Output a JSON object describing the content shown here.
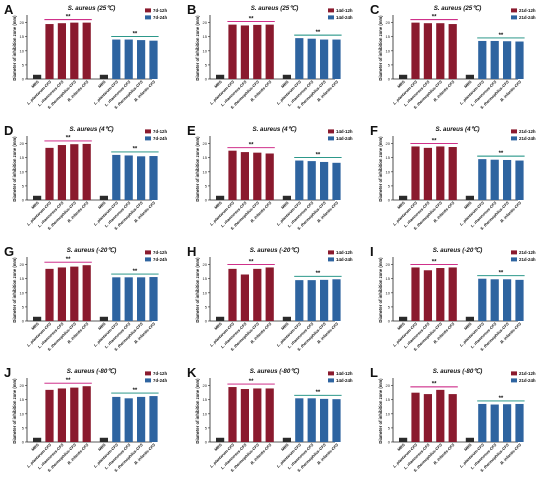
{
  "figure": {
    "colors": {
      "mrs": "#2b2b2b",
      "twelve": "#8a1a2e",
      "twentyfour": "#2e64a0",
      "sig_line_12": "#c8127a",
      "sig_line_24": "#0f8a7a",
      "axis": "#222222"
    }
  },
  "chart_data": [
    {
      "type": "bar",
      "panel_letter": "A",
      "title": "S. aureus (25℃)",
      "ylabel": "Diameter of inhibition zone (mm)",
      "categories": [
        "MRS",
        "L. plantarum-CFS",
        "L. rhamnosus-CFS",
        "S. thermophilus-CFS",
        "B. infantis-CFS"
      ],
      "ylim": [
        0,
        22
      ],
      "legend": [
        "7d-12h",
        "7d-24h"
      ],
      "sig": [
        "**",
        "**"
      ],
      "series": [
        {
          "name": "7d-12h",
          "values": [
            1.5,
            19.5,
            19.8,
            20.0,
            20.0
          ]
        },
        {
          "name": "7d-24h",
          "values": [
            1.5,
            14.0,
            14.0,
            13.8,
            13.6
          ]
        }
      ]
    },
    {
      "type": "bar",
      "panel_letter": "B",
      "title": "S. aureus (25℃)",
      "ylabel": "Diameter of inhibition zone (mm)",
      "categories": [
        "MRS",
        "L. plantarum-CFS",
        "L. rhamnosus-CFS",
        "S. thermophilus-CFS",
        "B. infantis-CFS"
      ],
      "ylim": [
        0,
        22
      ],
      "legend": [
        "14d-12h",
        "14d-24h"
      ],
      "sig": [
        "**",
        "**"
      ],
      "series": [
        {
          "name": "14d-12h",
          "values": [
            1.5,
            19.3,
            19.0,
            19.2,
            19.3
          ]
        },
        {
          "name": "14d-24h",
          "values": [
            1.5,
            14.5,
            14.3,
            14.0,
            14.0
          ]
        }
      ]
    },
    {
      "type": "bar",
      "panel_letter": "C",
      "title": "S. aureus (25℃)",
      "ylabel": "Diameter of inhibition zone (mm)",
      "categories": [
        "MRS",
        "L. plantarum-CFS",
        "L. rhamnosus-CFS",
        "S. thermophilus-CFS",
        "B. infantis-CFS"
      ],
      "ylim": [
        0,
        22
      ],
      "legend": [
        "21d-12h",
        "21d-24h"
      ],
      "sig": [
        "**",
        "**"
      ],
      "series": [
        {
          "name": "21d-12h",
          "values": [
            1.5,
            20.0,
            19.8,
            19.8,
            19.5
          ]
        },
        {
          "name": "21d-24h",
          "values": [
            1.5,
            13.5,
            13.5,
            13.4,
            13.3
          ]
        }
      ]
    },
    {
      "type": "bar",
      "panel_letter": "D",
      "title": "S. aureus (4℃)",
      "ylabel": "Diameter of inhibition zone (mm)",
      "categories": [
        "MRS",
        "L. plantarum-CFS",
        "L. rhamnosus-CFS",
        "S. thermophilus-CFS",
        "B. infantis-CFS"
      ],
      "ylim": [
        0,
        22
      ],
      "legend": [
        "7d-12h",
        "7d-24h"
      ],
      "sig": [
        "**",
        "**"
      ],
      "series": [
        {
          "name": "7d-12h",
          "values": [
            1.5,
            18.5,
            19.5,
            19.8,
            19.9
          ]
        },
        {
          "name": "7d-24h",
          "values": [
            1.5,
            16.0,
            15.8,
            15.5,
            15.6
          ]
        }
      ]
    },
    {
      "type": "bar",
      "panel_letter": "E",
      "title": "S. aureus (4℃)",
      "ylabel": "Diameter of inhibition zone (mm)",
      "categories": [
        "MRS",
        "L. plantarum-CFS",
        "L. rhamnosus-CFS",
        "S. thermophilus-CFS",
        "B. infantis-CFS"
      ],
      "ylim": [
        0,
        22
      ],
      "legend": [
        "14d-12h",
        "14d-24h"
      ],
      "sig": [
        "**",
        "**"
      ],
      "series": [
        {
          "name": "14d-12h",
          "values": [
            1.5,
            17.5,
            17.0,
            16.8,
            16.5
          ]
        },
        {
          "name": "14d-24h",
          "values": [
            1.5,
            14.0,
            13.8,
            13.5,
            13.2
          ]
        }
      ]
    },
    {
      "type": "bar",
      "panel_letter": "F",
      "title": "S. aureus (4℃)",
      "ylabel": "Diameter of inhibition zone (mm)",
      "categories": [
        "MRS",
        "L. plantarum-CFS",
        "L. rhamnosus-CFS",
        "S. thermophilus-CFS",
        "B. infantis-CFS"
      ],
      "ylim": [
        0,
        22
      ],
      "legend": [
        "21d-12h",
        "21d-24h"
      ],
      "sig": [
        "**",
        "**"
      ],
      "series": [
        {
          "name": "21d-12h",
          "values": [
            1.5,
            19.0,
            18.5,
            19.0,
            18.8
          ]
        },
        {
          "name": "21d-24h",
          "values": [
            1.5,
            14.5,
            14.3,
            14.2,
            14.0
          ]
        }
      ]
    },
    {
      "type": "bar",
      "panel_letter": "G",
      "title": "S. aureus (-20℃)",
      "ylabel": "Diameter of inhibition zone (mm)",
      "categories": [
        "MRS",
        "L. plantarum-CFS",
        "L. rhamnosus-CFS",
        "S. thermophilus-CFS",
        "B. infantis-CFS"
      ],
      "ylim": [
        0,
        22
      ],
      "legend": [
        "7d-12h",
        "7d-24h"
      ],
      "sig": [
        "**",
        "**"
      ],
      "series": [
        {
          "name": "7d-12h",
          "values": [
            1.5,
            18.5,
            19.0,
            19.3,
            19.8
          ]
        },
        {
          "name": "7d-24h",
          "values": [
            1.5,
            15.5,
            15.5,
            15.5,
            15.6
          ]
        }
      ]
    },
    {
      "type": "bar",
      "panel_letter": "H",
      "title": "S. aureus (-20℃)",
      "ylabel": "Diameter of inhibition zone (mm)",
      "categories": [
        "MRS",
        "L. plantarum-CFS",
        "L. rhamnosus-CFS",
        "S. thermophilus-CFS",
        "B. infantis-CFS"
      ],
      "ylim": [
        0,
        22
      ],
      "legend": [
        "14d-12h",
        "14d-24h"
      ],
      "sig": [
        "**",
        "**"
      ],
      "series": [
        {
          "name": "14d-12h",
          "values": [
            1.5,
            18.5,
            16.5,
            18.5,
            19.0
          ]
        },
        {
          "name": "14d-24h",
          "values": [
            1.5,
            14.5,
            14.5,
            14.6,
            14.8
          ]
        }
      ]
    },
    {
      "type": "bar",
      "panel_letter": "I",
      "title": "S. aureus (-20℃)",
      "ylabel": "Diameter of inhibition zone (mm)",
      "categories": [
        "MRS",
        "L. plantarum-CFS",
        "L. rhamnosus-CFS",
        "S. thermophilus-CFS",
        "B. infantis-CFS"
      ],
      "ylim": [
        0,
        22
      ],
      "legend": [
        "21d-12h",
        "21d-24h"
      ],
      "sig": [
        "**",
        "**"
      ],
      "series": [
        {
          "name": "21d-12h",
          "values": [
            1.5,
            19.0,
            18.0,
            18.8,
            19.0
          ]
        },
        {
          "name": "21d-24h",
          "values": [
            1.5,
            15.0,
            14.8,
            14.8,
            14.6
          ]
        }
      ]
    },
    {
      "type": "bar",
      "panel_letter": "J",
      "title": "S. aureus (-80℃)",
      "ylabel": "Diameter of inhibition zone (mm)",
      "categories": [
        "MRS",
        "L. plantarum-CFS",
        "L. rhamnosus-CFS",
        "S. thermophilus-CFS",
        "B. infantis-CFS"
      ],
      "ylim": [
        0,
        22
      ],
      "legend": [
        "7d-12h",
        "7d-24h"
      ],
      "sig": [
        "**",
        "**"
      ],
      "series": [
        {
          "name": "7d-12h",
          "values": [
            1.5,
            18.5,
            19.0,
            19.3,
            19.8
          ]
        },
        {
          "name": "7d-24h",
          "values": [
            1.5,
            16.0,
            15.5,
            16.0,
            16.3
          ]
        }
      ]
    },
    {
      "type": "bar",
      "panel_letter": "K",
      "title": "S. aureus (-80℃)",
      "ylabel": "Diameter of inhibition zone (mm)",
      "categories": [
        "MRS",
        "L. plantarum-CFS",
        "L. rhamnosus-CFS",
        "S. thermophilus-CFS",
        "B. infantis-CFS"
      ],
      "ylim": [
        0,
        22
      ],
      "legend": [
        "14d-12h",
        "14d-24h"
      ],
      "sig": [
        "**",
        "**"
      ],
      "series": [
        {
          "name": "14d-12h",
          "values": [
            1.5,
            19.5,
            18.8,
            19.0,
            19.0
          ]
        },
        {
          "name": "14d-24h",
          "values": [
            1.5,
            15.5,
            15.5,
            15.3,
            15.2
          ]
        }
      ]
    },
    {
      "type": "bar",
      "panel_letter": "L",
      "title": "S. aureus (-80℃)",
      "ylabel": "Diameter of inhibition zone (mm)",
      "categories": [
        "MRS",
        "L. plantarum-CFS",
        "L. rhamnosus-CFS",
        "S. thermophilus-CFS",
        "B. infantis-CFS"
      ],
      "ylim": [
        0,
        22
      ],
      "legend": [
        "21d-12h",
        "21d-24h"
      ],
      "sig": [
        "**",
        "**"
      ],
      "series": [
        {
          "name": "21d-12h",
          "values": [
            1.5,
            17.5,
            17.0,
            18.5,
            17.0
          ]
        },
        {
          "name": "21d-24h",
          "values": [
            1.5,
            13.5,
            13.3,
            13.4,
            13.5
          ]
        }
      ]
    }
  ]
}
